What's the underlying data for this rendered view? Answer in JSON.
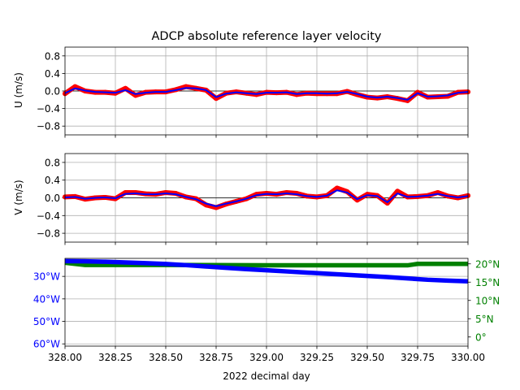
{
  "figure": {
    "title": "ADCP absolute reference layer velocity",
    "xlabel": "2022 decimal day"
  },
  "colors": {
    "raw": "#ff0000",
    "smooth": "#0000ff",
    "longitude": "#0000ff",
    "latitude": "#008000",
    "grid": "#b0b0b0",
    "zero_line": "#000000"
  },
  "chart_data": [
    {
      "type": "line",
      "panel": "u",
      "ylabel": "U (m/s)",
      "xlim": [
        328.0,
        330.0
      ],
      "ylim": [
        -1.0,
        1.0
      ],
      "yticks": [
        -0.8,
        -0.4,
        0.0,
        0.4,
        0.8
      ],
      "ytick_labels": [
        "−0.8",
        "−0.4",
        "0.0",
        "0.4",
        "0.8"
      ],
      "x": [
        328.0,
        328.05,
        328.1,
        328.15,
        328.2,
        328.25,
        328.3,
        328.35,
        328.4,
        328.45,
        328.5,
        328.55,
        328.6,
        328.65,
        328.7,
        328.75,
        328.8,
        328.85,
        328.9,
        328.95,
        329.0,
        329.05,
        329.1,
        329.15,
        329.2,
        329.25,
        329.3,
        329.35,
        329.4,
        329.45,
        329.5,
        329.55,
        329.6,
        329.65,
        329.7,
        329.75,
        329.8,
        329.85,
        329.9,
        329.95,
        330.0
      ],
      "series": [
        {
          "values": [
            -0.06,
            0.1,
            0.0,
            -0.03,
            -0.03,
            -0.05,
            0.06,
            -0.1,
            -0.03,
            -0.02,
            -0.02,
            0.03,
            0.1,
            0.06,
            0.02,
            -0.17,
            -0.05,
            -0.02,
            -0.05,
            -0.08,
            -0.03,
            -0.04,
            -0.03,
            -0.08,
            -0.05,
            -0.06,
            -0.06,
            -0.06,
            -0.01,
            -0.08,
            -0.14,
            -0.16,
            -0.13,
            -0.17,
            -0.22,
            -0.03,
            -0.14,
            -0.13,
            -0.12,
            -0.03,
            -0.02
          ]
        },
        {
          "values": [
            -0.05,
            0.06,
            0.01,
            -0.02,
            -0.03,
            -0.04,
            0.02,
            -0.07,
            -0.04,
            -0.02,
            -0.02,
            0.02,
            0.07,
            0.06,
            0.02,
            -0.14,
            -0.06,
            -0.03,
            -0.05,
            -0.07,
            -0.04,
            -0.04,
            -0.03,
            -0.07,
            -0.05,
            -0.05,
            -0.06,
            -0.05,
            -0.02,
            -0.07,
            -0.13,
            -0.15,
            -0.13,
            -0.16,
            -0.2,
            -0.05,
            -0.13,
            -0.12,
            -0.1,
            -0.04,
            -0.02
          ]
        }
      ]
    },
    {
      "type": "line",
      "panel": "v",
      "ylabel": "V (m/s)",
      "xlim": [
        328.0,
        330.0
      ],
      "ylim": [
        -1.0,
        1.0
      ],
      "yticks": [
        -0.8,
        -0.4,
        0.0,
        0.4,
        0.8
      ],
      "ytick_labels": [
        "−0.8",
        "−0.4",
        "0.0",
        "0.4",
        "0.8"
      ],
      "x": [
        328.0,
        328.05,
        328.1,
        328.15,
        328.2,
        328.25,
        328.3,
        328.35,
        328.4,
        328.45,
        328.5,
        328.55,
        328.6,
        328.65,
        328.7,
        328.75,
        328.8,
        328.85,
        328.9,
        328.95,
        329.0,
        329.05,
        329.1,
        329.15,
        329.2,
        329.25,
        329.3,
        329.35,
        329.4,
        329.45,
        329.5,
        329.55,
        329.6,
        329.65,
        329.7,
        329.75,
        329.8,
        329.85,
        329.9,
        329.95,
        330.0
      ],
      "series": [
        {
          "values": [
            0.02,
            0.03,
            -0.03,
            0.0,
            0.01,
            -0.02,
            0.12,
            0.12,
            0.09,
            0.08,
            0.12,
            0.1,
            0.02,
            -0.02,
            -0.16,
            -0.22,
            -0.14,
            -0.08,
            -0.02,
            0.08,
            0.1,
            0.08,
            0.12,
            0.1,
            0.04,
            0.02,
            0.05,
            0.22,
            0.14,
            -0.05,
            0.08,
            0.05,
            -0.12,
            0.15,
            0.02,
            0.03,
            0.05,
            0.12,
            0.04,
            0.0,
            0.05
          ]
        },
        {
          "values": [
            0.01,
            0.02,
            -0.02,
            0.0,
            0.01,
            -0.01,
            0.09,
            0.1,
            0.08,
            0.08,
            0.1,
            0.08,
            0.02,
            -0.03,
            -0.13,
            -0.19,
            -0.13,
            -0.08,
            -0.02,
            0.06,
            0.09,
            0.08,
            0.1,
            0.08,
            0.04,
            0.02,
            0.05,
            0.17,
            0.12,
            -0.03,
            0.06,
            0.04,
            -0.1,
            0.1,
            0.02,
            0.03,
            0.05,
            0.09,
            0.04,
            0.01,
            0.04
          ]
        }
      ]
    },
    {
      "type": "line",
      "panel": "position",
      "xlim": [
        328.0,
        330.0
      ],
      "xticks": [
        328.0,
        328.25,
        328.5,
        328.75,
        329.0,
        329.25,
        329.5,
        329.75,
        330.0
      ],
      "xtick_labels": [
        "328.00",
        "328.25",
        "328.50",
        "328.75",
        "329.00",
        "329.25",
        "329.50",
        "329.75",
        "330.00"
      ],
      "left_axis": {
        "ylim": [
          -61,
          -22
        ],
        "yticks": [
          -30,
          -40,
          -50,
          -60
        ],
        "ytick_labels": [
          "30°W",
          "40°W",
          "50°W",
          "60°W"
        ]
      },
      "right_axis": {
        "ylim": [
          -2.5,
          21.5
        ],
        "yticks": [
          0,
          5,
          10,
          15,
          20
        ],
        "ytick_labels": [
          "0°",
          "5°N",
          "10°N",
          "15°N",
          "20°N"
        ]
      },
      "series": [
        {
          "axis": "left",
          "x": [
            328.0,
            328.1,
            328.2,
            328.3,
            328.4,
            328.5,
            328.6,
            328.7,
            328.8,
            328.9,
            329.0,
            329.1,
            329.2,
            329.3,
            329.4,
            329.5,
            329.6,
            329.7,
            329.8,
            329.9,
            330.0
          ],
          "values": [
            -23.2,
            -23.3,
            -23.5,
            -23.8,
            -24.1,
            -24.5,
            -25.0,
            -25.6,
            -26.2,
            -26.8,
            -27.3,
            -27.8,
            -28.3,
            -28.8,
            -29.3,
            -29.8,
            -30.3,
            -30.9,
            -31.5,
            -31.9,
            -32.2
          ]
        },
        {
          "axis": "right",
          "x": [
            328.0,
            328.05,
            328.1,
            328.5,
            329.0,
            329.5,
            329.7,
            329.75,
            330.0
          ],
          "values": [
            20.3,
            20.0,
            19.7,
            19.7,
            19.6,
            19.6,
            19.6,
            20.0,
            20.0
          ]
        }
      ]
    }
  ]
}
